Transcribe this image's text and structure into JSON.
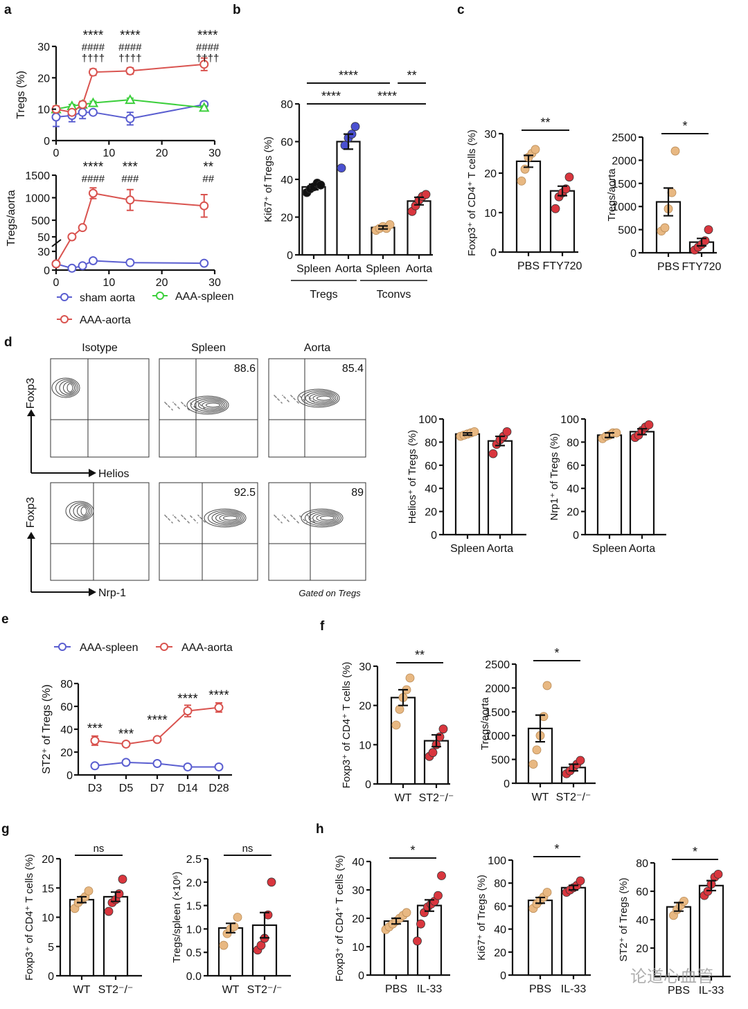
{
  "panels": {
    "a": "a",
    "b": "b",
    "c": "c",
    "d": "d",
    "e": "e",
    "f": "f",
    "g": "g",
    "h": "h"
  },
  "watermark": "论道心血管",
  "flow": {
    "col_titles": [
      "Isotype",
      "Spleen",
      "Aorta"
    ],
    "y_label": "Foxp3",
    "x_labels": [
      "Helios",
      "Nrp-1"
    ],
    "values": [
      [
        "",
        "88.6",
        "85.4"
      ],
      [
        "",
        "92.5",
        "89"
      ]
    ],
    "gate_note": "Gated on  Tregs"
  },
  "chart_data": [
    {
      "id": "a_top",
      "type": "line",
      "ylabel": "Tregs (%)",
      "xlim": [
        0,
        30
      ],
      "ylim": [
        0,
        30
      ],
      "xticks": [
        "0",
        "10",
        "20",
        "30"
      ],
      "yticks": [
        "0",
        "10",
        "20",
        "30"
      ],
      "x": [
        0,
        3,
        5,
        7,
        14,
        28
      ],
      "series": [
        {
          "name": "sham aorta",
          "color": "#5a5ed0",
          "marker": "circle",
          "values": [
            7.5,
            8,
            9,
            9,
            7,
            11.5
          ],
          "err": [
            3,
            2,
            2,
            0.5,
            2,
            0.5
          ]
        },
        {
          "name": "AAA-spleen",
          "color": "#3ccf3c",
          "marker": "triangle",
          "values": [
            10,
            11,
            11.5,
            12,
            13,
            10.5
          ],
          "err": [
            0.5,
            0.5,
            0.5,
            0.5,
            0.5,
            0.5
          ]
        },
        {
          "name": "AAA-aorta",
          "color": "#d9534f",
          "marker": "circle",
          "values": [
            10,
            9,
            11.5,
            21.8,
            22.2,
            24.3
          ],
          "err": [
            1,
            0.5,
            1,
            1,
            1,
            2
          ]
        }
      ],
      "annotations": [
        {
          "x": 7,
          "lines": [
            "****",
            "####",
            "††††"
          ]
        },
        {
          "x": 14,
          "lines": [
            "****",
            "####",
            "††††"
          ]
        },
        {
          "x": 28,
          "lines": [
            "****",
            "####",
            "††††"
          ]
        }
      ]
    },
    {
      "id": "a_bottom",
      "type": "line",
      "ylabel": "Tregs/aorta",
      "xlim": [
        0,
        30
      ],
      "broken_axis": true,
      "xticks": [
        "0",
        "10",
        "20",
        "30"
      ],
      "yticks": [
        "0",
        "30",
        "50",
        "500",
        "1000",
        "1500"
      ],
      "x": [
        0,
        3,
        5,
        7,
        14,
        28
      ],
      "series": [
        {
          "name": "sham aorta",
          "color": "#5a5ed0",
          "values": [
            10,
            3,
            7,
            15,
            12,
            11
          ],
          "err": [
            0,
            0,
            0,
            0,
            0,
            0
          ]
        },
        {
          "name": "AAA-aorta",
          "color": "#d9534f",
          "values": [
            10,
            50,
            300,
            1100,
            950,
            820
          ],
          "err": [
            0,
            0,
            0,
            120,
            230,
            250
          ]
        }
      ],
      "annotations": [
        {
          "x": 7,
          "lines": [
            "****",
            "####"
          ]
        },
        {
          "x": 14,
          "lines": [
            "***",
            "###"
          ]
        },
        {
          "x": 28,
          "lines": [
            "**",
            "##"
          ]
        }
      ],
      "legend": [
        "sham aorta",
        "AAA-spleen",
        "AAA-aorta"
      ]
    },
    {
      "id": "b",
      "type": "bar",
      "ylabel": "Ki67⁺ of Tregs (%)",
      "ylim": [
        0,
        80
      ],
      "yticks": [
        "0",
        "20",
        "40",
        "60",
        "80"
      ],
      "categories": [
        "Spleen",
        "Aorta",
        "Spleen",
        "Aorta"
      ],
      "values": [
        36,
        60,
        14.5,
        28.5
      ],
      "err": [
        1.5,
        4,
        0.8,
        2
      ],
      "dot_colors": [
        "#111111",
        "#4a50d0",
        "#e8b882",
        "#d9363e"
      ],
      "dots": [
        [
          33,
          35,
          36,
          38,
          37
        ],
        [
          46,
          58,
          62,
          64,
          68
        ],
        [
          13,
          14,
          15,
          14,
          16
        ],
        [
          23,
          26,
          29,
          31,
          32
        ]
      ],
      "groups": [
        {
          "label": "Tregs",
          "span": [
            0,
            1
          ]
        },
        {
          "label": "Tconvs",
          "span": [
            2,
            3
          ]
        }
      ],
      "sig": [
        {
          "from": 0,
          "to": 2,
          "label": "****",
          "level": 1
        },
        {
          "from": 2.6,
          "to": 3,
          "label": "**",
          "level": 1
        },
        {
          "from": 0,
          "to": 1,
          "label": "****",
          "level": 0
        },
        {
          "from": 1.2,
          "to": 3,
          "label": "****",
          "level": 0
        }
      ]
    },
    {
      "id": "c1",
      "type": "bar",
      "ylabel": "Foxp3⁺ of CD4⁺ T cells (%)",
      "ylim": [
        0,
        30
      ],
      "yticks": [
        "0",
        "10",
        "20",
        "30"
      ],
      "categories": [
        "PBS",
        "FTY720"
      ],
      "values": [
        23,
        15.5
      ],
      "err": [
        1.5,
        1.2
      ],
      "dot_colors": [
        "#e8b882",
        "#d9363e"
      ],
      "dots": [
        [
          18,
          21,
          24,
          25,
          26
        ],
        [
          11,
          14,
          15,
          16,
          19
        ]
      ],
      "sig": [
        {
          "from": 0,
          "to": 1,
          "label": "**",
          "level": 0
        }
      ]
    },
    {
      "id": "c2",
      "type": "bar",
      "ylabel": "Tregs/aorta",
      "ylim": [
        0,
        2500
      ],
      "yticks": [
        "0",
        "500",
        "1000",
        "1500",
        "2000",
        "2500"
      ],
      "categories": [
        "PBS",
        "FTY720"
      ],
      "values": [
        1100,
        230
      ],
      "err": [
        300,
        80
      ],
      "dot_colors": [
        "#e8b882",
        "#d9363e"
      ],
      "dots": [
        [
          470,
          540,
          950,
          1300,
          2200
        ],
        [
          60,
          120,
          180,
          260,
          500
        ]
      ],
      "sig": [
        {
          "from": 0,
          "to": 1,
          "label": "*",
          "level": 0
        }
      ]
    },
    {
      "id": "d_helios",
      "type": "bar",
      "ylabel": "Helios⁺ of Tregs (%)",
      "ylim": [
        0,
        100
      ],
      "yticks": [
        "0",
        "20",
        "40",
        "60",
        "80",
        "100"
      ],
      "categories": [
        "Spleen",
        "Aorta"
      ],
      "values": [
        87,
        81
      ],
      "err": [
        1,
        4
      ],
      "dot_colors": [
        "#e8b882",
        "#d9363e"
      ],
      "dots": [
        [
          85,
          86,
          87,
          88,
          89
        ],
        [
          70,
          78,
          82,
          85,
          89
        ]
      ]
    },
    {
      "id": "d_nrp1",
      "type": "bar",
      "ylabel": "Nrp1⁺ of Tregs (%)",
      "ylim": [
        0,
        100
      ],
      "yticks": [
        "0",
        "20",
        "40",
        "60",
        "80",
        "100"
      ],
      "categories": [
        "Spleen",
        "Aorta"
      ],
      "values": [
        86,
        89
      ],
      "err": [
        2,
        2.5
      ],
      "dot_colors": [
        "#e8b882",
        "#d9363e"
      ],
      "dots": [
        [
          83,
          85,
          86,
          88,
          88
        ],
        [
          84,
          86,
          90,
          93,
          95
        ]
      ]
    },
    {
      "id": "e",
      "type": "line",
      "ylabel": "ST2⁺ of Tregs (%)",
      "ylim": [
        0,
        80
      ],
      "yticks": [
        "0",
        "20",
        "40",
        "60",
        "80"
      ],
      "categories": [
        "D3",
        "D5",
        "D7",
        "D14",
        "D28"
      ],
      "series": [
        {
          "name": "AAA-spleen",
          "color": "#5a5ed0",
          "values": [
            8,
            11,
            10,
            7,
            7
          ],
          "err": [
            0,
            0,
            0,
            0,
            0
          ]
        },
        {
          "name": "AAA-aorta",
          "color": "#d9534f",
          "values": [
            30,
            27,
            31,
            56,
            59
          ],
          "err": [
            4,
            1,
            1,
            5,
            4
          ]
        }
      ],
      "annotations": [
        "***",
        "***",
        "****",
        "****",
        "****"
      ],
      "legend": [
        "AAA-spleen",
        "AAA-aorta"
      ]
    },
    {
      "id": "f1",
      "type": "bar",
      "ylabel": "Foxp3⁺ of CD4⁺ T cells (%)",
      "ylim": [
        0,
        30
      ],
      "yticks": [
        "0",
        "10",
        "20",
        "30"
      ],
      "categories": [
        "WT",
        "ST2⁻/⁻"
      ],
      "values": [
        22,
        11
      ],
      "err": [
        2,
        1.5
      ],
      "dot_colors": [
        "#e8b882",
        "#d9363e"
      ],
      "dots": [
        [
          15,
          19,
          22,
          24,
          27
        ],
        [
          7,
          8,
          10,
          12,
          14
        ]
      ],
      "sig": [
        {
          "from": 0,
          "to": 1,
          "label": "**",
          "level": 0
        }
      ]
    },
    {
      "id": "f2",
      "type": "bar",
      "ylabel": "Tregs/aorta",
      "ylim": [
        0,
        2500
      ],
      "yticks": [
        "0",
        "500",
        "1000",
        "1500",
        "2000",
        "2500"
      ],
      "categories": [
        "WT",
        "ST2⁻/⁻"
      ],
      "values": [
        1150,
        330
      ],
      "err": [
        280,
        70
      ],
      "dot_colors": [
        "#e8b882",
        "#d9363e"
      ],
      "dots": [
        [
          400,
          700,
          1000,
          1400,
          2050
        ],
        [
          200,
          260,
          330,
          400,
          480
        ]
      ],
      "sig": [
        {
          "from": 0,
          "to": 1,
          "label": "*",
          "level": 0
        }
      ]
    },
    {
      "id": "g1",
      "type": "bar",
      "ylabel": "Foxp3⁺ of CD4⁺ T cells (%)",
      "ylim": [
        0,
        20
      ],
      "yticks": [
        "0",
        "5",
        "10",
        "15",
        "20"
      ],
      "categories": [
        "WT",
        "ST2⁻/⁻"
      ],
      "values": [
        13,
        13.5
      ],
      "err": [
        0.5,
        0.8
      ],
      "dot_colors": [
        "#e8b882",
        "#d9363e"
      ],
      "dots": [
        [
          11.5,
          12.5,
          13,
          13.5,
          14.5
        ],
        [
          11,
          12.5,
          13,
          14,
          16.5
        ]
      ],
      "sig": [
        {
          "from": 0,
          "to": 1,
          "label": "ns",
          "level": 0
        }
      ]
    },
    {
      "id": "g2",
      "type": "bar",
      "ylabel": "Tregs/spleen (×10⁶)",
      "ylim": [
        0,
        2.5
      ],
      "yticks": [
        "0.0",
        "0.5",
        "1.0",
        "1.5",
        "2.0",
        "2.5"
      ],
      "categories": [
        "WT",
        "ST2⁻/⁻"
      ],
      "values": [
        1.02,
        1.08
      ],
      "err": [
        0.1,
        0.27
      ],
      "dot_colors": [
        "#e8b882",
        "#d9363e"
      ],
      "dots": [
        [
          0.65,
          0.9,
          1.0,
          1.05,
          1.25
        ],
        [
          0.55,
          0.65,
          0.8,
          1.3,
          2.0
        ]
      ],
      "sig": [
        {
          "from": 0,
          "to": 1,
          "label": "ns",
          "level": 0
        }
      ]
    },
    {
      "id": "h1",
      "type": "bar",
      "ylabel": "Foxp3⁺ of CD4⁺ T cells (%)",
      "ylim": [
        0,
        40
      ],
      "yticks": [
        "0",
        "10",
        "20",
        "30",
        "40"
      ],
      "categories": [
        "PBS",
        "IL-33"
      ],
      "values": [
        19,
        24.5
      ],
      "err": [
        1,
        2
      ],
      "dot_colors": [
        "#e8b882",
        "#d9363e"
      ],
      "dots": [
        [
          16,
          17,
          18,
          19,
          20,
          21,
          22
        ],
        [
          12,
          18,
          22,
          24,
          25,
          26,
          28,
          35
        ]
      ],
      "sig": [
        {
          "from": 0,
          "to": 1,
          "label": "*",
          "level": 0
        }
      ]
    },
    {
      "id": "h2",
      "type": "bar",
      "ylabel": "Ki67⁺ of Tregs (%)",
      "ylim": [
        0,
        100
      ],
      "yticks": [
        "0",
        "20",
        "40",
        "60",
        "80",
        "100"
      ],
      "categories": [
        "PBS",
        "IL-33"
      ],
      "values": [
        65,
        76
      ],
      "err": [
        2.5,
        2
      ],
      "dot_colors": [
        "#e8b882",
        "#d9363e"
      ],
      "dots": [
        [
          58,
          62,
          65,
          68,
          72
        ],
        [
          72,
          74,
          76,
          78,
          82
        ]
      ],
      "sig": [
        {
          "from": 0,
          "to": 1,
          "label": "*",
          "level": 0
        }
      ]
    },
    {
      "id": "h3",
      "type": "bar",
      "ylabel": "ST2⁺ of Tregs (%)",
      "ylim": [
        0,
        80
      ],
      "yticks": [
        "20",
        "40",
        "60",
        "80"
      ],
      "categories": [
        "PBS",
        "IL-33"
      ],
      "values": [
        49,
        64
      ],
      "err": [
        3,
        3.5
      ],
      "dot_colors": [
        "#e8b882",
        "#d9363e"
      ],
      "dots": [
        [
          43,
          47,
          50,
          53
        ],
        [
          57,
          60,
          65,
          70,
          72
        ]
      ],
      "sig": [
        {
          "from": 0,
          "to": 1,
          "label": "*",
          "level": 0
        }
      ]
    }
  ]
}
